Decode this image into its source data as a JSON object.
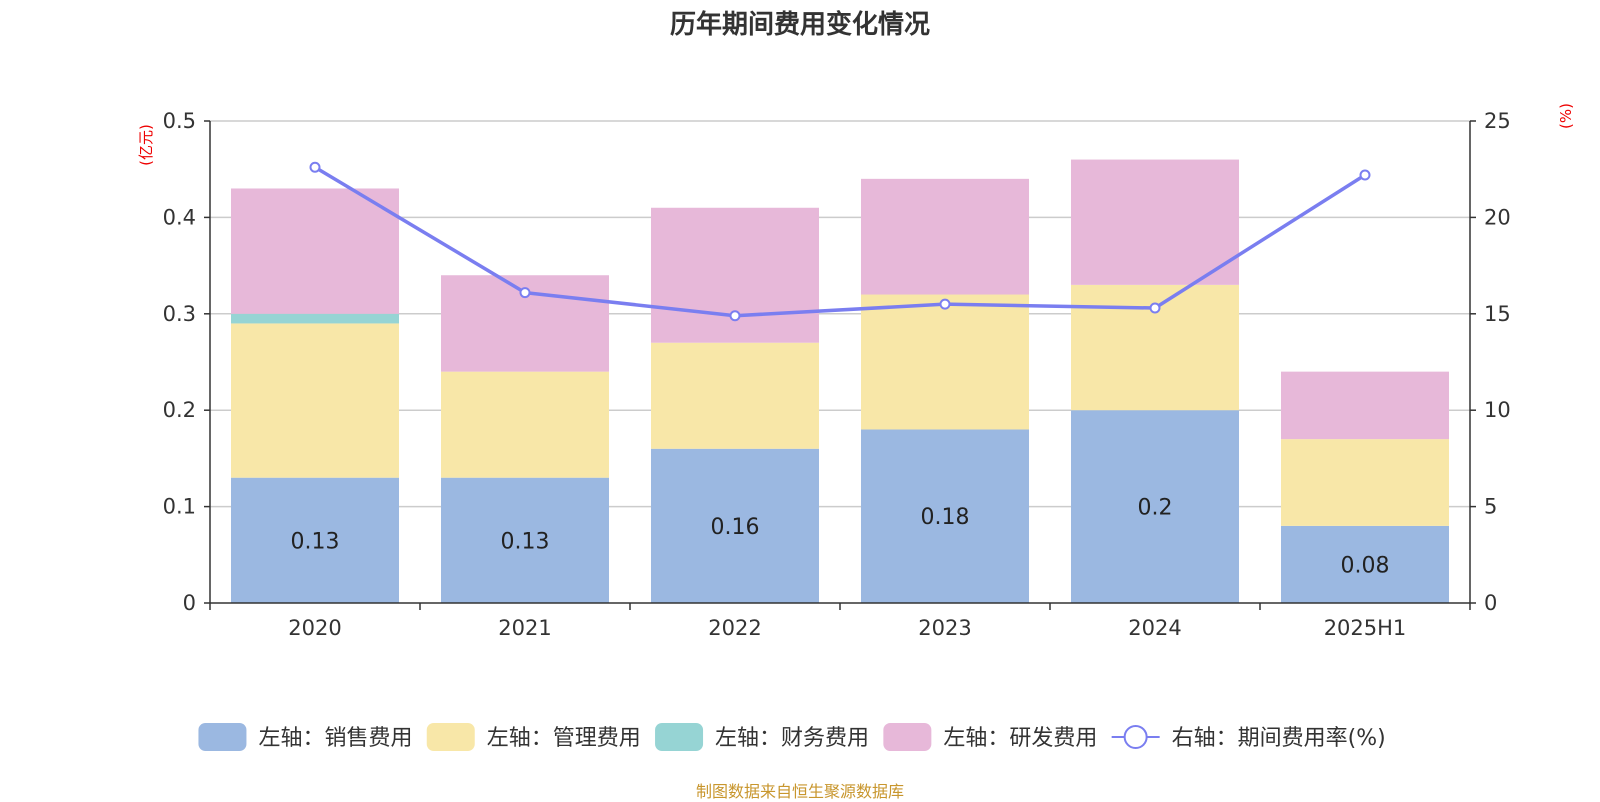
{
  "title": "历年期间费用变化情况",
  "source_note": "制图数据来自恒生聚源数据库",
  "chart_data": {
    "type": "bar",
    "stacked": true,
    "title": "历年期间费用变化情况",
    "categories": [
      "2020",
      "2021",
      "2022",
      "2023",
      "2024",
      "2025H1"
    ],
    "left_axis": {
      "unit": "(亿元)",
      "ylim": [
        0,
        0.5
      ],
      "ticks": [
        0,
        0.1,
        0.2,
        0.3,
        0.4,
        0.5
      ],
      "tick_labels": [
        "0",
        "0.1",
        "0.2",
        "0.3",
        "0.4",
        "0.5"
      ]
    },
    "right_axis": {
      "unit": "(%)",
      "ylim": [
        0,
        25
      ],
      "ticks": [
        0,
        5,
        10,
        15,
        20,
        25
      ],
      "tick_labels": [
        "0",
        "5",
        "10",
        "15",
        "20",
        "25"
      ]
    },
    "series": [
      {
        "name": "左轴：销售费用",
        "axis": "left",
        "kind": "bar",
        "color": "#9bb8e1",
        "values": [
          0.13,
          0.13,
          0.16,
          0.18,
          0.2,
          0.08
        ],
        "data_labels": [
          "0.13",
          "0.13",
          "0.16",
          "0.18",
          "0.2",
          "0.08"
        ]
      },
      {
        "name": "左轴：管理费用",
        "axis": "left",
        "kind": "bar",
        "color": "#f8e7a8",
        "values": [
          0.16,
          0.11,
          0.11,
          0.14,
          0.13,
          0.09
        ]
      },
      {
        "name": "左轴：财务费用",
        "axis": "left",
        "kind": "bar",
        "color": "#96d4d4",
        "values": [
          0.01,
          0,
          0,
          0,
          0,
          0
        ]
      },
      {
        "name": "左轴：研发费用",
        "axis": "left",
        "kind": "bar",
        "color": "#e7b8d9",
        "values": [
          0.13,
          0.1,
          0.14,
          0.12,
          0.13,
          0.07
        ]
      },
      {
        "name": "右轴：期间费用率(%)",
        "axis": "right",
        "kind": "line",
        "color": "#7a7ef0",
        "values": [
          22.6,
          16.1,
          14.9,
          15.5,
          15.3,
          22.2
        ]
      }
    ],
    "grid": true,
    "legend_position": "bottom"
  }
}
